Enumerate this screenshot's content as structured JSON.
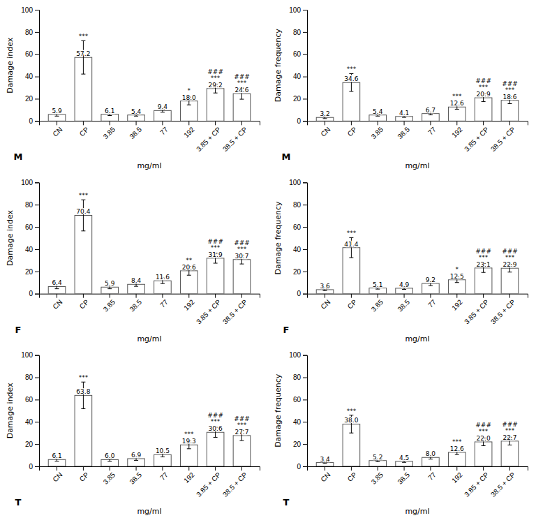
{
  "chart_data": [
    {
      "type": "bar",
      "annotations": [
        "M"
      ],
      "ylabel": "Damage index",
      "xlabel": "mg/ml",
      "categories": [
        "CN",
        "CP",
        "3.85",
        "38.5",
        "77",
        "192",
        "3.85 + CP",
        "38.5 + CP"
      ],
      "values": [
        5.9,
        57.2,
        6.1,
        5.4,
        9.4,
        18.0,
        29.2,
        24.6
      ],
      "value_labels": [
        "5.9",
        "57.2",
        "6.1",
        "5.4",
        "9.4",
        "18.0",
        "29.2",
        "24.6"
      ],
      "errors": [
        1.5,
        15.0,
        1.2,
        1.0,
        1.5,
        3.5,
        4.0,
        5.0
      ],
      "significance": [
        null,
        [
          "***"
        ],
        null,
        null,
        null,
        [
          "*"
        ],
        [
          "###",
          "***"
        ],
        [
          "###",
          "***"
        ]
      ],
      "color": "white",
      "data_labels": true,
      "grid": false,
      "ylim": [
        0,
        100
      ],
      "yticks": [
        0,
        20,
        40,
        60,
        80,
        100
      ]
    },
    {
      "type": "bar",
      "annotations": [
        "M"
      ],
      "ylabel": "Damage frequency",
      "xlabel": "mg/ml",
      "categories": [
        "CN",
        "CP",
        "3.85",
        "38.5",
        "77",
        "192",
        "3.85 + CP",
        "38.5 + CP"
      ],
      "values": [
        3.2,
        34.6,
        5.4,
        4.1,
        6.7,
        12.6,
        20.9,
        18.6
      ],
      "value_labels": [
        "3.2",
        "34.6",
        "5.4",
        "4.1",
        "6.7",
        "12.6",
        "20.9",
        "18.6"
      ],
      "errors": [
        1.0,
        8.0,
        1.0,
        0.8,
        1.2,
        2.0,
        3.5,
        3.0
      ],
      "significance": [
        null,
        [
          "***"
        ],
        null,
        null,
        null,
        [
          "***"
        ],
        [
          "###",
          "***"
        ],
        [
          "###",
          "***"
        ]
      ],
      "color": "white",
      "data_labels": true,
      "grid": false,
      "ylim": [
        0,
        100
      ],
      "yticks": [
        0,
        20,
        40,
        60,
        80,
        100
      ]
    },
    {
      "type": "bar",
      "annotations": [
        "F"
      ],
      "ylabel": "Damage index",
      "xlabel": "mg/ml",
      "categories": [
        "CN",
        "CP",
        "3.85",
        "38.5",
        "77",
        "192",
        "3.85 + CP",
        "38.5 + CP"
      ],
      "values": [
        6.4,
        70.4,
        5.9,
        8.4,
        11.6,
        20.6,
        31.9,
        30.7
      ],
      "value_labels": [
        "6.4",
        "70.4",
        "5.9",
        "8.4",
        "11.6",
        "20.6",
        "31.9",
        "30.7"
      ],
      "errors": [
        2.0,
        14.0,
        1.5,
        1.8,
        2.5,
        4.0,
        4.5,
        4.0
      ],
      "significance": [
        null,
        [
          "***"
        ],
        null,
        null,
        null,
        [
          "**"
        ],
        [
          "###",
          "***"
        ],
        [
          "###",
          "***"
        ]
      ],
      "color": "white",
      "data_labels": true,
      "grid": false,
      "ylim": [
        0,
        100
      ],
      "yticks": [
        0,
        20,
        40,
        60,
        80,
        100
      ]
    },
    {
      "type": "bar",
      "annotations": [
        "F"
      ],
      "ylabel": "Damage frequency",
      "xlabel": "mg/ml",
      "categories": [
        "CN",
        "CP",
        "3.85",
        "38.5",
        "77",
        "192",
        "3.85 + CP",
        "38.5 + CP"
      ],
      "values": [
        3.6,
        41.4,
        5.1,
        4.9,
        9.2,
        12.5,
        23.1,
        22.9
      ],
      "value_labels": [
        "3.6",
        "41.4",
        "5.1",
        "4.9",
        "9.2",
        "12.5",
        "23.1",
        "22.9"
      ],
      "errors": [
        0.8,
        9.0,
        1.0,
        1.0,
        2.0,
        2.5,
        4.0,
        3.5
      ],
      "significance": [
        null,
        [
          "***"
        ],
        null,
        null,
        null,
        [
          "*"
        ],
        [
          "###",
          "***"
        ],
        [
          "###",
          "***"
        ]
      ],
      "color": "white",
      "data_labels": true,
      "grid": false,
      "ylim": [
        0,
        100
      ],
      "yticks": [
        0,
        20,
        40,
        60,
        80,
        100
      ]
    },
    {
      "type": "bar",
      "annotations": [
        "T"
      ],
      "ylabel": "Damage index",
      "xlabel": "mg/ml",
      "categories": [
        "CN",
        "CP",
        "3.85",
        "38.5",
        "77",
        "192",
        "3.85 + CP",
        "38.5 + CP"
      ],
      "values": [
        6.1,
        63.8,
        6.0,
        6.9,
        10.5,
        19.3,
        30.6,
        27.7
      ],
      "value_labels": [
        "6.1",
        "63.8",
        "6.0",
        "6.9",
        "10.5",
        "19.3",
        "30.6",
        "27.7"
      ],
      "errors": [
        1.5,
        12.0,
        1.5,
        1.5,
        2.0,
        3.5,
        4.5,
        4.5
      ],
      "significance": [
        null,
        [
          "***"
        ],
        null,
        null,
        null,
        [
          "***"
        ],
        [
          "###",
          "***"
        ],
        [
          "###",
          "***"
        ]
      ],
      "color": "white",
      "data_labels": true,
      "grid": false,
      "ylim": [
        0,
        100
      ],
      "yticks": [
        0,
        20,
        40,
        60,
        80,
        100
      ]
    },
    {
      "type": "bar",
      "annotations": [
        "T"
      ],
      "ylabel": "Damage frequency",
      "xlabel": "mg/ml",
      "categories": [
        "CN",
        "CP",
        "3.85",
        "38.5",
        "77",
        "192",
        "3.85 + CP",
        "38.5 + CP"
      ],
      "values": [
        3.4,
        38.0,
        5.2,
        4.5,
        8.0,
        12.6,
        22.0,
        22.7
      ],
      "value_labels": [
        "3.4",
        "38.0",
        "5.2",
        "4.5",
        "8.0",
        "12.6",
        "22.0",
        "22.7"
      ],
      "errors": [
        0.8,
        8.0,
        1.0,
        0.9,
        1.5,
        2.0,
        3.5,
        3.5
      ],
      "significance": [
        null,
        [
          "***"
        ],
        null,
        null,
        null,
        [
          "***"
        ],
        [
          "###",
          "***"
        ],
        [
          "###",
          "***"
        ]
      ],
      "color": "white",
      "data_labels": true,
      "grid": false,
      "ylim": [
        0,
        100
      ],
      "yticks": [
        0,
        20,
        40,
        60,
        80,
        100
      ]
    }
  ]
}
